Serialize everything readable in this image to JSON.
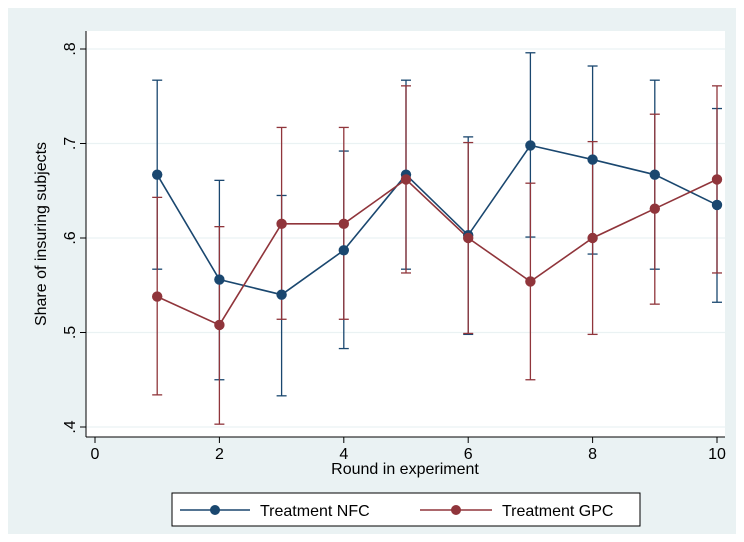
{
  "chart_data": {
    "type": "line",
    "xlabel": "Round in experiment",
    "ylabel": "Share of insuring subjects",
    "xlim": [
      0,
      10
    ],
    "ylim": [
      0.4,
      0.8
    ],
    "x_ticks": [
      0,
      2,
      4,
      6,
      8,
      10
    ],
    "y_ticks": [
      0.4,
      0.5,
      0.6,
      0.7,
      0.8
    ],
    "x_tick_labels": [
      "0",
      "2",
      "4",
      "6",
      "8",
      "10"
    ],
    "y_tick_labels": [
      ".4",
      ".5",
      ".6",
      ".7",
      ".8"
    ],
    "grid": true,
    "legend_position": "bottom",
    "x": [
      1,
      2,
      3,
      4,
      5,
      6,
      7,
      8,
      9,
      10
    ],
    "series": [
      {
        "name": "Treatment NFC",
        "color": "#1a476f",
        "values": [
          0.667,
          0.556,
          0.54,
          0.587,
          0.667,
          0.603,
          0.698,
          0.683,
          0.667,
          0.635
        ],
        "ci_low": [
          0.567,
          0.45,
          0.433,
          0.483,
          0.567,
          0.498,
          0.601,
          0.583,
          0.567,
          0.532
        ],
        "ci_high": [
          0.767,
          0.661,
          0.645,
          0.692,
          0.767,
          0.707,
          0.796,
          0.782,
          0.767,
          0.737
        ]
      },
      {
        "name": "Treatment GPC",
        "color": "#90353b",
        "values": [
          0.538,
          0.508,
          0.615,
          0.615,
          0.662,
          0.6,
          0.554,
          0.6,
          0.631,
          0.662
        ],
        "ci_low": [
          0.434,
          0.403,
          0.514,
          0.514,
          0.563,
          0.499,
          0.45,
          0.498,
          0.53,
          0.563
        ],
        "ci_high": [
          0.643,
          0.612,
          0.717,
          0.717,
          0.761,
          0.701,
          0.658,
          0.702,
          0.731,
          0.761
        ]
      }
    ]
  }
}
